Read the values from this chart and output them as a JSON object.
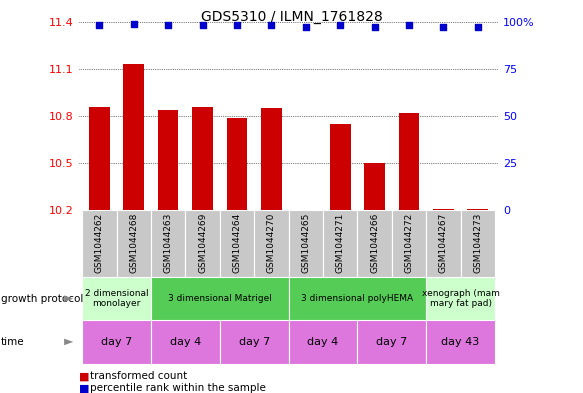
{
  "title": "GDS5310 / ILMN_1761828",
  "samples": [
    "GSM1044262",
    "GSM1044268",
    "GSM1044263",
    "GSM1044269",
    "GSM1044264",
    "GSM1044270",
    "GSM1044265",
    "GSM1044271",
    "GSM1044266",
    "GSM1044272",
    "GSM1044267",
    "GSM1044273"
  ],
  "bar_values": [
    10.86,
    11.13,
    10.84,
    10.86,
    10.79,
    10.85,
    10.2,
    10.75,
    10.5,
    10.82,
    10.21,
    10.21
  ],
  "percentile_values": [
    98,
    99,
    98,
    98,
    98,
    98,
    97,
    98,
    97,
    98,
    97,
    97
  ],
  "ylim_left": [
    10.2,
    11.4
  ],
  "ylim_right": [
    0,
    100
  ],
  "yticks_left": [
    10.2,
    10.5,
    10.8,
    11.1,
    11.4
  ],
  "ytick_labels_left": [
    "10.2",
    "10.5",
    "10.8",
    "11.1",
    "11.4"
  ],
  "yticks_right": [
    0,
    25,
    50,
    75,
    100
  ],
  "ytick_labels_right": [
    "0",
    "25",
    "50",
    "75",
    "100%"
  ],
  "bar_color": "#cc0000",
  "percentile_color": "#0000cc",
  "bar_width": 0.6,
  "growth_protocol_groups": [
    {
      "label": "2 dimensional\nmonolayer",
      "start": 0,
      "end": 2,
      "color": "#ccffcc"
    },
    {
      "label": "3 dimensional Matrigel",
      "start": 2,
      "end": 6,
      "color": "#55cc55"
    },
    {
      "label": "3 dimensional polyHEMA",
      "start": 6,
      "end": 10,
      "color": "#55cc55"
    },
    {
      "label": "xenograph (mam\nmary fat pad)",
      "start": 10,
      "end": 12,
      "color": "#ccffcc"
    }
  ],
  "time_groups": [
    {
      "label": "day 7",
      "start": 0,
      "end": 2,
      "color": "#dd77dd"
    },
    {
      "label": "day 4",
      "start": 2,
      "end": 4,
      "color": "#dd77dd"
    },
    {
      "label": "day 7",
      "start": 4,
      "end": 6,
      "color": "#dd77dd"
    },
    {
      "label": "day 4",
      "start": 6,
      "end": 8,
      "color": "#dd77dd"
    },
    {
      "label": "day 7",
      "start": 8,
      "end": 10,
      "color": "#dd77dd"
    },
    {
      "label": "day 43",
      "start": 10,
      "end": 12,
      "color": "#dd77dd"
    }
  ],
  "legend_items": [
    {
      "label": "transformed count",
      "color": "#cc0000"
    },
    {
      "label": "percentile rank within the sample",
      "color": "#0000cc"
    }
  ],
  "growth_protocol_label": "growth protocol",
  "time_label": "time",
  "background_color": "#ffffff",
  "sample_bg_color": "#c8c8c8"
}
